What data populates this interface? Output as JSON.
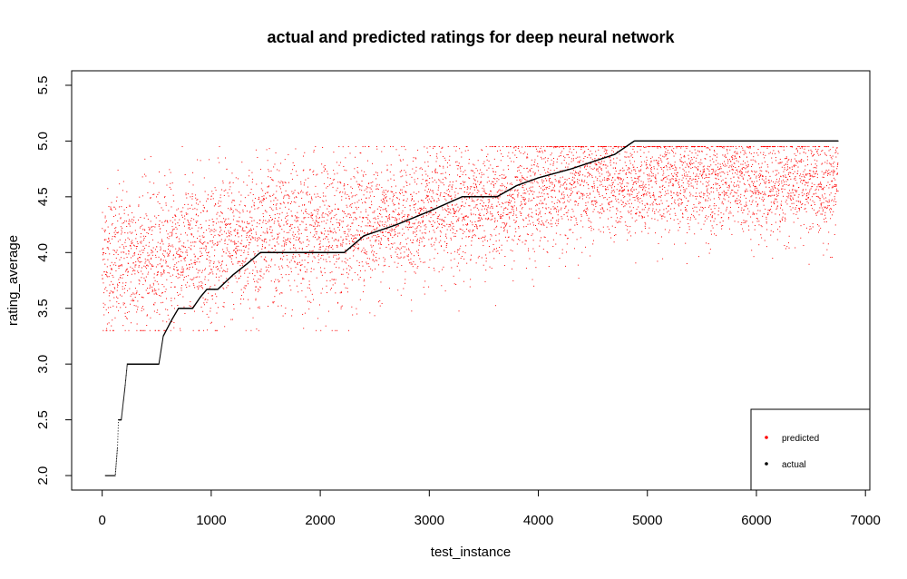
{
  "chart_data": {
    "type": "scatter",
    "title": "actual and predicted ratings for deep neural network",
    "xlabel": "test_instance",
    "ylabel": "rating_average",
    "xlim": [
      -280,
      7040
    ],
    "ylim": [
      1.87,
      5.63
    ],
    "x_ticks": [
      0,
      1000,
      2000,
      3000,
      4000,
      5000,
      6000,
      7000
    ],
    "y_ticks": [
      2.0,
      2.5,
      3.0,
      3.5,
      4.0,
      4.5,
      5.0,
      5.5
    ],
    "x_tick_labels": [
      "0",
      "1000",
      "2000",
      "3000",
      "4000",
      "5000",
      "6000",
      "7000"
    ],
    "y_tick_labels": [
      "2.0",
      "2.5",
      "3.0",
      "3.5",
      "4.0",
      "4.5",
      "5.0",
      "5.5"
    ],
    "grid": false,
    "legend_position": "bottom-right",
    "n_instances": 6750,
    "series": [
      {
        "name": "predicted",
        "color": "#ff0000",
        "description_of_trend": [
          {
            "x": 0,
            "y": 3.9
          },
          {
            "x": 500,
            "y": 3.95
          },
          {
            "x": 1000,
            "y": 4.05
          },
          {
            "x": 1500,
            "y": 4.15
          },
          {
            "x": 2000,
            "y": 4.2
          },
          {
            "x": 2500,
            "y": 4.25
          },
          {
            "x": 3000,
            "y": 4.35
          },
          {
            "x": 3500,
            "y": 4.45
          },
          {
            "x": 4000,
            "y": 4.55
          },
          {
            "x": 4500,
            "y": 4.62
          },
          {
            "x": 5000,
            "y": 4.65
          },
          {
            "x": 5500,
            "y": 4.65
          },
          {
            "x": 6000,
            "y": 4.62
          },
          {
            "x": 6500,
            "y": 4.62
          },
          {
            "x": 6750,
            "y": 4.62
          }
        ]
      },
      {
        "name": "actual",
        "color": "#000000",
        "steps": [
          {
            "x": 30,
            "y": 2.0
          },
          {
            "x": 120,
            "y": 2.0
          },
          {
            "x": 140,
            "y": 2.25
          },
          {
            "x": 150,
            "y": 2.5
          },
          {
            "x": 175,
            "y": 2.5
          },
          {
            "x": 210,
            "y": 2.8
          },
          {
            "x": 230,
            "y": 3.0
          },
          {
            "x": 520,
            "y": 3.0
          },
          {
            "x": 560,
            "y": 3.25
          },
          {
            "x": 640,
            "y": 3.4
          },
          {
            "x": 700,
            "y": 3.5
          },
          {
            "x": 830,
            "y": 3.5
          },
          {
            "x": 900,
            "y": 3.6
          },
          {
            "x": 960,
            "y": 3.67
          },
          {
            "x": 1060,
            "y": 3.67
          },
          {
            "x": 1200,
            "y": 3.8
          },
          {
            "x": 1330,
            "y": 3.9
          },
          {
            "x": 1450,
            "y": 4.0
          },
          {
            "x": 2220,
            "y": 4.0
          },
          {
            "x": 2400,
            "y": 4.15
          },
          {
            "x": 2700,
            "y": 4.25
          },
          {
            "x": 3000,
            "y": 4.37
          },
          {
            "x": 3300,
            "y": 4.5
          },
          {
            "x": 3620,
            "y": 4.5
          },
          {
            "x": 3800,
            "y": 4.6
          },
          {
            "x": 4000,
            "y": 4.67
          },
          {
            "x": 4300,
            "y": 4.75
          },
          {
            "x": 4700,
            "y": 4.88
          },
          {
            "x": 4880,
            "y": 5.0
          },
          {
            "x": 6750,
            "y": 5.0
          }
        ]
      }
    ]
  }
}
